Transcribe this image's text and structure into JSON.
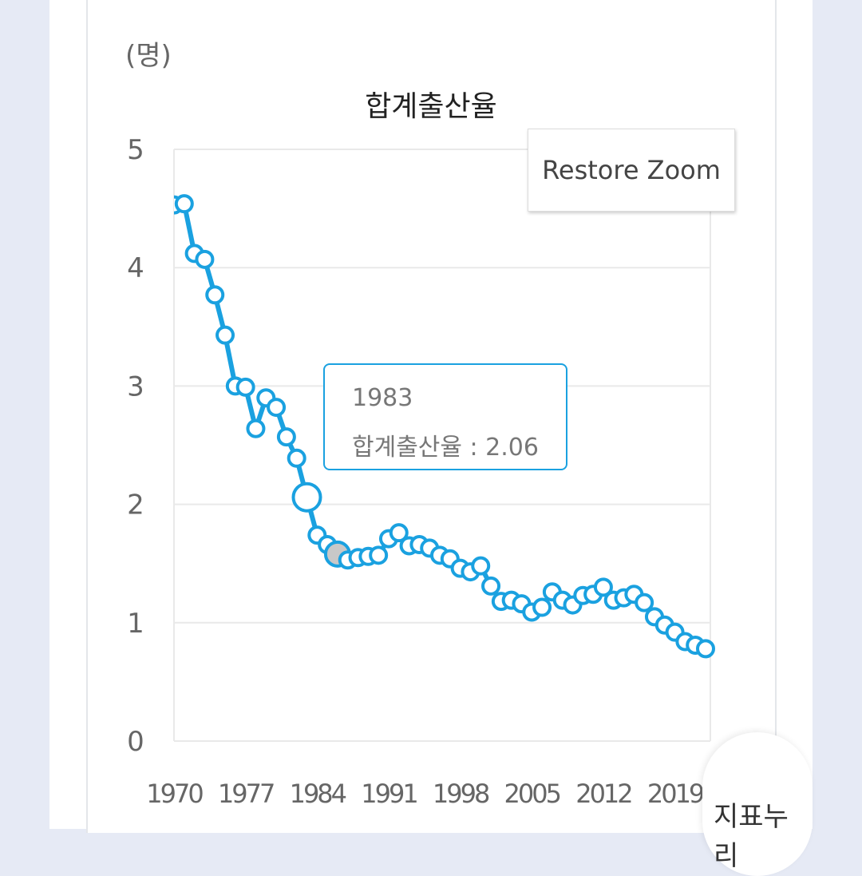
{
  "badge_label": "지표누리",
  "restore_zoom_label": "Restore Zoom",
  "tooltip": {
    "year": "1983",
    "text": "합계출산율 : 2.06"
  },
  "colors": {
    "series": "#1aa1e0",
    "hover_point": "#c8c8c8",
    "grid": "#e9e9e9",
    "background": "#e6eaf5"
  },
  "chart_data": {
    "type": "line",
    "title": "합계출산율",
    "ylabel": "(명)",
    "ylim": [
      0,
      5
    ],
    "yticks": [
      "0",
      "1",
      "2",
      "3",
      "4",
      "5"
    ],
    "xticks": [
      "1970",
      "1977",
      "1984",
      "1991",
      "1998",
      "2005",
      "2012",
      "2019"
    ],
    "xlim": [
      1970,
      2022
    ],
    "grid": true,
    "highlighted_year": 1983,
    "hovered_year": 1986,
    "series": [
      {
        "name": "합계출산율",
        "x": [
          1970,
          1971,
          1972,
          1973,
          1974,
          1975,
          1976,
          1977,
          1978,
          1979,
          1980,
          1981,
          1982,
          1983,
          1984,
          1985,
          1986,
          1987,
          1988,
          1989,
          1990,
          1991,
          1992,
          1993,
          1994,
          1995,
          1996,
          1997,
          1998,
          1999,
          2000,
          2001,
          2002,
          2003,
          2004,
          2005,
          2006,
          2007,
          2008,
          2009,
          2010,
          2011,
          2012,
          2013,
          2014,
          2015,
          2016,
          2017,
          2018,
          2019,
          2020,
          2021,
          2022
        ],
        "values": [
          4.53,
          4.54,
          4.12,
          4.07,
          3.77,
          3.43,
          3.0,
          2.99,
          2.64,
          2.9,
          2.82,
          2.57,
          2.39,
          2.06,
          1.74,
          1.66,
          1.58,
          1.53,
          1.55,
          1.56,
          1.57,
          1.71,
          1.76,
          1.65,
          1.66,
          1.63,
          1.57,
          1.54,
          1.46,
          1.43,
          1.48,
          1.31,
          1.18,
          1.19,
          1.16,
          1.09,
          1.13,
          1.26,
          1.19,
          1.15,
          1.23,
          1.24,
          1.3,
          1.19,
          1.21,
          1.24,
          1.17,
          1.05,
          0.98,
          0.92,
          0.84,
          0.81,
          0.78
        ]
      }
    ]
  }
}
